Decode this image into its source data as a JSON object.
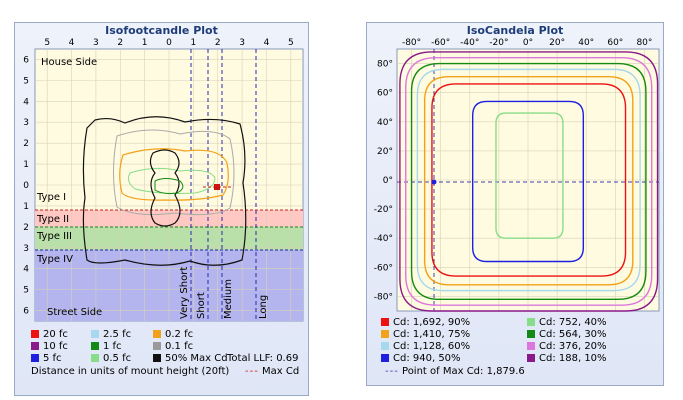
{
  "fc": {
    "title": "Isofootcandle Plot",
    "x_ticks": [
      "5",
      "4",
      "3",
      "2",
      "1",
      "0",
      "1",
      "2",
      "3",
      "4",
      "5"
    ],
    "y_ticks": [
      "6",
      "5",
      "4",
      "3",
      "2",
      "1",
      "0",
      "1",
      "2",
      "3",
      "4",
      "5",
      "6"
    ],
    "house_label": "House Side",
    "street_label": "Street Side",
    "type_labels": [
      "Type I",
      "Type II",
      "Type III",
      "Type IV"
    ],
    "vlabels": [
      "Very Short",
      "Short",
      "Medium",
      "Long"
    ],
    "legend": [
      {
        "label": "20 fc",
        "color": "#ee1111"
      },
      {
        "label": "2.5 fc",
        "color": "#a8d8ee"
      },
      {
        "label": "0.2 fc",
        "color": "#f2a21a"
      },
      {
        "label": "10 fc",
        "color": "#8a1a8a"
      },
      {
        "label": "1 fc",
        "color": "#138a13"
      },
      {
        "label": "0.1 fc",
        "color": "#9a9a9a"
      },
      {
        "label": "5 fc",
        "color": "#1f1fe0"
      },
      {
        "label": "0.5 fc",
        "color": "#88dd88"
      },
      {
        "label": "50% Max Cd",
        "color": "#111111"
      }
    ],
    "total_llf": "Total LLF: 0.69",
    "distance_note": "Distance in units of mount height (20ft)",
    "max_cd_label": "Max Cd"
  },
  "cd": {
    "title": "IsoCandela Plot",
    "x_ticks": [
      "-80°",
      "-60°",
      "-40°",
      "-20°",
      "0°",
      "20°",
      "40°",
      "60°",
      "80°"
    ],
    "y_ticks": [
      "80°",
      "60°",
      "40°",
      "20°",
      "0°",
      "-20°",
      "-40°",
      "-60°",
      "-80°"
    ],
    "legend": [
      {
        "label": "Cd: 1,692, 90%",
        "color": "#ee1111"
      },
      {
        "label": "Cd: 752, 40%",
        "color": "#88dd88"
      },
      {
        "label": "Cd: 1,410, 75%",
        "color": "#f2a21a"
      },
      {
        "label": "Cd: 564, 30%",
        "color": "#138a13"
      },
      {
        "label": "Cd: 1,128, 60%",
        "color": "#a8d8ee"
      },
      {
        "label": "Cd: 376, 20%",
        "color": "#dd77dd"
      },
      {
        "label": "Cd: 940, 50%",
        "color": "#1f1fe0"
      },
      {
        "label": "Cd: 188, 10%",
        "color": "#8a1a8a"
      }
    ],
    "max_cd_note": "Point of Max Cd: 1,879.6"
  },
  "chart_data": [
    {
      "type": "contour",
      "title": "Isofootcandle Plot",
      "xlim": [
        -5,
        5
      ],
      "ylim": [
        -6,
        6
      ],
      "levels_fc": [
        20,
        10,
        5,
        2.5,
        1,
        0.5,
        0.2,
        0.1
      ],
      "zones": [
        "House Side",
        "Type I",
        "Type II",
        "Type III",
        "Type IV",
        "Street Side"
      ],
      "zone_lines": [
        "Very Short",
        "Short",
        "Medium",
        "Long"
      ],
      "total_llf": 0.69
    },
    {
      "type": "contour",
      "title": "IsoCandela Plot",
      "xlim": [
        -90,
        90
      ],
      "ylim": [
        -90,
        90
      ],
      "levels": [
        {
          "cd": 1692,
          "pct": 90
        },
        {
          "cd": 1410,
          "pct": 75
        },
        {
          "cd": 1128,
          "pct": 60
        },
        {
          "cd": 940,
          "pct": 50
        },
        {
          "cd": 752,
          "pct": 40
        },
        {
          "cd": 564,
          "pct": 30
        },
        {
          "cd": 376,
          "pct": 20
        },
        {
          "cd": 188,
          "pct": 10
        }
      ],
      "max_cd": 1879.6,
      "max_cd_point": [
        -65,
        0
      ]
    }
  ]
}
